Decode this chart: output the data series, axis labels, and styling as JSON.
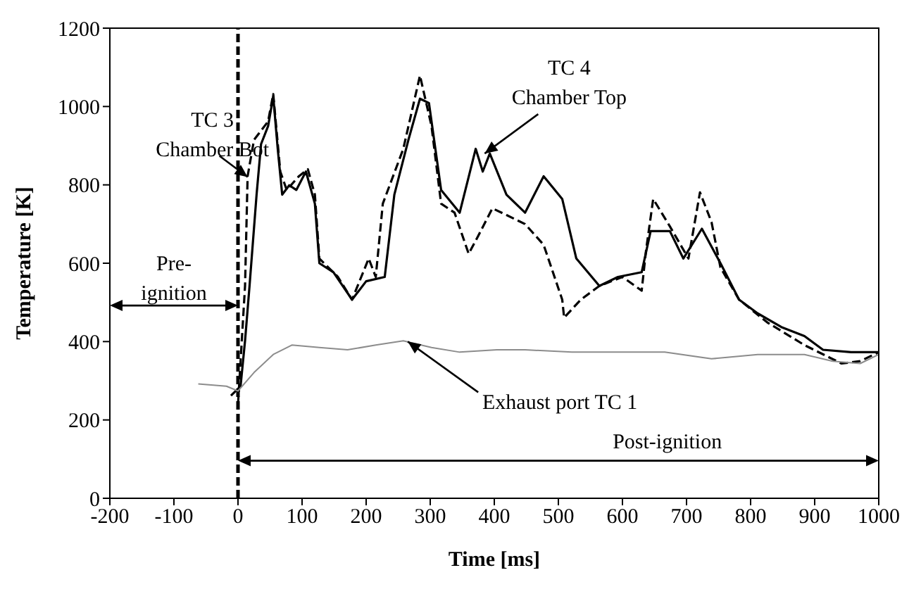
{
  "chart_data": {
    "type": "line",
    "xlabel": "Time [ms]",
    "ylabel": "Temperature [K]",
    "xlim": [
      -200,
      1000
    ],
    "xticks": [
      -200,
      -100,
      0,
      100,
      200,
      300,
      400,
      500,
      600,
      700,
      800,
      900,
      1000
    ],
    "ylim": [
      0,
      1200
    ],
    "yticks": [
      0,
      200,
      400,
      600,
      800,
      1000,
      1200
    ],
    "ref_lines": [
      {
        "axis": "x",
        "value": 0,
        "color": "#000000",
        "line_style": "dashed"
      }
    ],
    "series": [
      {
        "color": "#000000",
        "line_style": "solid",
        "x": [
          -11,
          4,
          11,
          18,
          29,
          36,
          47,
          55,
          62,
          69,
          80,
          91,
          106,
          120,
          127,
          149,
          178,
          200,
          229,
          244,
          266,
          284,
          298,
          317,
          346,
          371,
          382,
          393,
          419,
          448,
          477,
          506,
          528,
          564,
          593,
          630,
          644,
          674,
          695,
          724,
          753,
          782,
          811,
          848,
          884,
          913,
          957,
          1000
        ],
        "values": [
          262,
          286,
          402,
          542,
          775,
          904,
          950,
          1026,
          892,
          775,
          799,
          787,
          834,
          752,
          600,
          577,
          507,
          554,
          565,
          775,
          915,
          1020,
          1009,
          787,
          729,
          892,
          834,
          880,
          775,
          729,
          822,
          764,
          612,
          542,
          565,
          577,
          682,
          682,
          612,
          688,
          600,
          507,
          472,
          437,
          414,
          379,
          373,
          373
        ]
      },
      {
        "color": "#000000",
        "line_style": "dashed",
        "x": [
          0,
          11,
          15,
          25,
          47,
          55,
          66,
          76,
          95,
          109,
          120,
          127,
          156,
          178,
          204,
          215,
          226,
          258,
          284,
          302,
          317,
          338,
          360,
          375,
          397,
          419,
          448,
          477,
          506,
          509,
          535,
          564,
          600,
          630,
          637,
          648,
          674,
          703,
          721,
          739,
          753,
          782,
          826,
          884,
          942,
          971,
          1000
        ],
        "values": [
          239,
          542,
          822,
          915,
          962,
          1032,
          834,
          787,
          822,
          840,
          775,
          612,
          565,
          507,
          612,
          565,
          752,
          892,
          1079,
          950,
          752,
          729,
          624,
          670,
          740,
          723,
          700,
          647,
          507,
          461,
          507,
          542,
          565,
          530,
          635,
          764,
          694,
          612,
          781,
          705,
          589,
          507,
          449,
          391,
          344,
          350,
          373
        ]
      },
      {
        "color": "#8c8c8c",
        "line_style": "solid",
        "x": [
          -62,
          -18,
          0,
          25,
          55,
          84,
          127,
          171,
          215,
          258,
          302,
          346,
          404,
          448,
          521,
          593,
          666,
          739,
          811,
          884,
          928,
          971,
          1000
        ],
        "values": [
          292,
          286,
          274,
          321,
          367,
          391,
          385,
          379,
          391,
          402,
          385,
          373,
          379,
          379,
          373,
          373,
          373,
          356,
          367,
          367,
          350,
          344,
          367
        ]
      }
    ],
    "annotations": [
      {
        "text": "TC 3 Chamber Bot",
        "x": 15,
        "y": 820
      },
      {
        "text": "TC 4 Chamber Top",
        "x": 385,
        "y": 880
      },
      {
        "text": "Exhaust port TC 1",
        "x": 265,
        "y": 400
      },
      "Pre- ignition",
      "Post-ignition"
    ]
  }
}
